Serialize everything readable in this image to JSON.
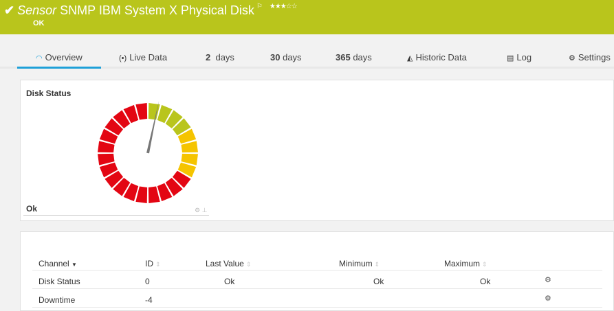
{
  "header": {
    "title_prefix": "Sensor",
    "title": "SNMP IBM System X Physical Disk",
    "status": "OK",
    "rating_stars": "★★★☆☆",
    "rating": 3,
    "bg_color": "#b9c51c"
  },
  "tabs": [
    {
      "label": "Overview",
      "icon": "gauge-icon",
      "active": true
    },
    {
      "label": "Live Data",
      "icon": "broadcast-icon"
    },
    {
      "num": "2",
      "label": "days"
    },
    {
      "num": "30",
      "label": "days"
    },
    {
      "num": "365",
      "label": "days"
    },
    {
      "label": "Historic Data",
      "icon": "area-chart-icon"
    },
    {
      "label": "Log",
      "icon": "list-icon"
    },
    {
      "label": "Settings",
      "icon": "gear-icon"
    }
  ],
  "gauge": {
    "title": "Disk Status",
    "value": "Ok",
    "segment_colors": {
      "ok": "#b9c51c",
      "warning": "#f5c400",
      "error": "#e30613"
    }
  },
  "table": {
    "headers": [
      "Channel",
      "ID",
      "Last Value",
      "Minimum",
      "Maximum"
    ],
    "rows": [
      {
        "channel": "Disk Status",
        "id": "0",
        "last": "Ok",
        "min": "Ok",
        "max": "Ok"
      },
      {
        "channel": "Downtime",
        "id": "-4",
        "last": "",
        "min": "",
        "max": ""
      }
    ]
  }
}
